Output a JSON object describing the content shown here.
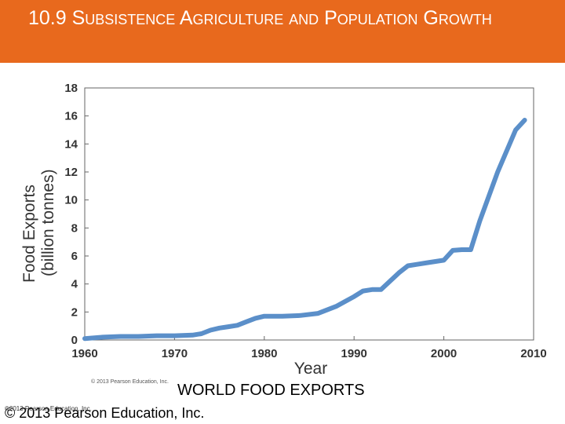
{
  "slide": {
    "title": "10.9 Subsistence Agriculture and Population Growth",
    "caption": "WORLD FOOD EXPORTS",
    "copyright": "© 2013 Pearson Education, Inc.",
    "figure_copyright": "©2013 Pearson Education, Inc.",
    "figure_credit": "© 2013 Pearson Education, Inc.",
    "header_color": "#e8691d",
    "line_color": "#5b8fc9"
  },
  "chart_data": {
    "type": "line",
    "title": "",
    "xlabel": "Year",
    "ylabel_line1": "Food Exports",
    "ylabel_line2": "(billion tonnes)",
    "xlim": [
      1960,
      2010
    ],
    "ylim": [
      0,
      18
    ],
    "xticks": [
      1960,
      1970,
      1980,
      1990,
      2000,
      2010
    ],
    "yticks": [
      0,
      2,
      4,
      6,
      8,
      10,
      12,
      14,
      16,
      18
    ],
    "grid": false,
    "series": [
      {
        "x": [
          1960,
          1962,
          1964,
          1966,
          1968,
          1970,
          1972,
          1973,
          1974,
          1975,
          1976,
          1977,
          1978,
          1979,
          1980,
          1981,
          1982,
          1984,
          1986,
          1988,
          1990,
          1991,
          1992,
          1993,
          1994,
          1995,
          1996,
          1997,
          1998,
          2000,
          2001,
          2002,
          2003,
          2004,
          2006,
          2008,
          2009
        ],
        "y": [
          0.1,
          0.2,
          0.25,
          0.25,
          0.3,
          0.3,
          0.35,
          0.45,
          0.7,
          0.85,
          0.95,
          1.05,
          1.3,
          1.55,
          1.7,
          1.7,
          1.7,
          1.75,
          1.9,
          2.4,
          3.1,
          3.5,
          3.6,
          3.6,
          4.2,
          4.8,
          5.3,
          5.4,
          5.5,
          5.7,
          6.4,
          6.45,
          6.45,
          8.5,
          12.0,
          15.0,
          15.7
        ]
      }
    ]
  }
}
